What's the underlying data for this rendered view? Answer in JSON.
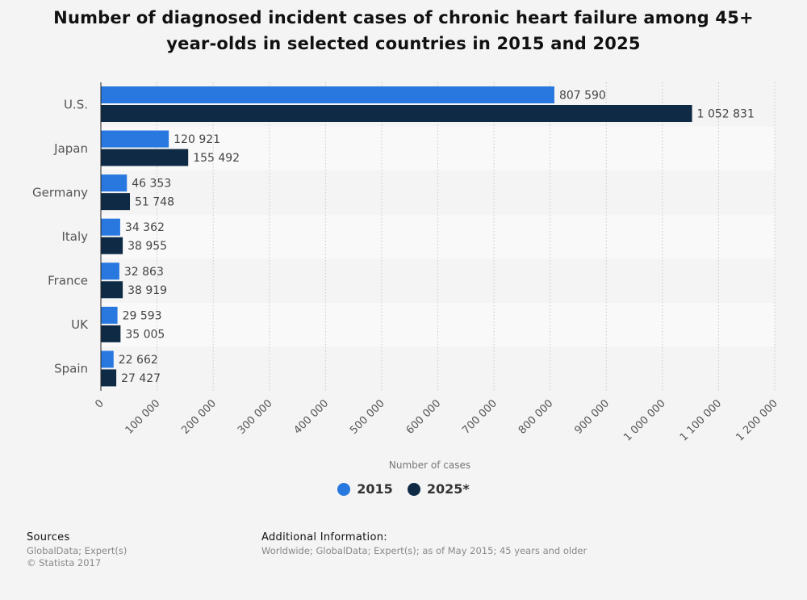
{
  "title": "Number of diagnosed incident cases of chronic heart failure among 45+ year-olds in selected countries in 2015 and 2025",
  "chart_data": {
    "type": "bar",
    "orientation": "horizontal",
    "categories": [
      "U.S.",
      "Japan",
      "Germany",
      "Italy",
      "France",
      "UK",
      "Spain"
    ],
    "series": [
      {
        "name": "2015",
        "color": "#2878df",
        "values": [
          807590,
          120921,
          46353,
          34362,
          32863,
          29593,
          22662
        ],
        "labels": [
          "807 590",
          "120 921",
          "46 353",
          "34 362",
          "32 863",
          "29 593",
          "22 662"
        ]
      },
      {
        "name": "2025*",
        "color": "#0e2a45",
        "values": [
          1052831,
          155492,
          51748,
          38955,
          38919,
          35005,
          27427
        ],
        "labels": [
          "1 052 831",
          "155 492",
          "51 748",
          "38 955",
          "38 919",
          "35 005",
          "27 427"
        ]
      }
    ],
    "xlabel": "Number of cases",
    "ylabel": "",
    "xlim": [
      0,
      1200000
    ],
    "xticks": [
      0,
      100000,
      200000,
      300000,
      400000,
      500000,
      600000,
      700000,
      800000,
      900000,
      1000000,
      1100000,
      1200000
    ],
    "xtick_labels": [
      "0",
      "100 000",
      "200 000",
      "300 000",
      "400 000",
      "500 000",
      "600 000",
      "700 000",
      "800 000",
      "900 000",
      "1 000 000",
      "1 100 000",
      "1 200 000"
    ],
    "grid": "vertical dotted",
    "legend": "bottom-center"
  },
  "footer": {
    "sources_heading": "Sources",
    "sources_line1": "GlobalData; Expert(s)",
    "sources_line2": "© Statista 2017",
    "additional_heading": "Additional Information:",
    "additional_text": "Worldwide; GlobalData; Expert(s); as of May 2015; 45 years and older"
  }
}
